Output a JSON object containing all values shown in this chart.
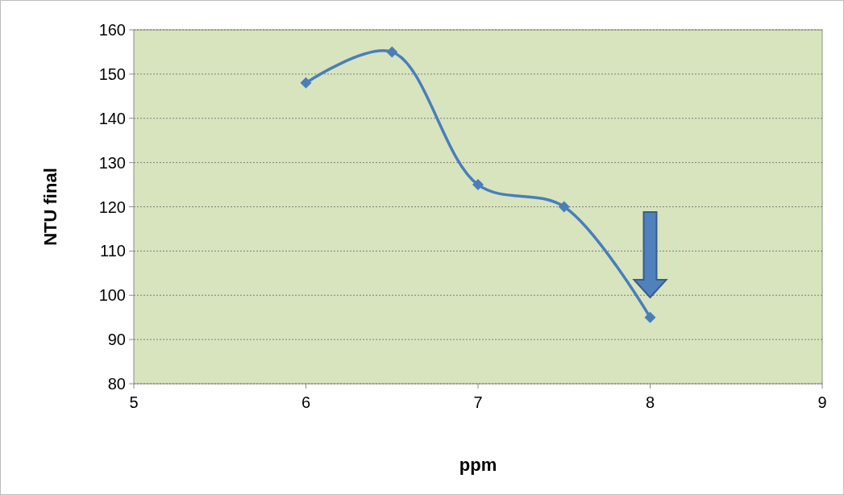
{
  "chart_data": {
    "type": "line",
    "xlabel": "ppm",
    "ylabel": "NTU final",
    "x": [
      6,
      6.5,
      7,
      7.5,
      8
    ],
    "series": [
      {
        "color": "#4a7ebb",
        "values": [
          148,
          155,
          125,
          120,
          95
        ]
      }
    ],
    "xlim": [
      5,
      9
    ],
    "xticks": [
      5,
      6,
      7,
      8,
      9
    ],
    "ylim": [
      80,
      160
    ],
    "yticks": [
      80,
      90,
      100,
      110,
      120,
      130,
      140,
      150,
      160
    ],
    "grid": "y",
    "marker": "diamond",
    "line_style": "solid"
  }
}
